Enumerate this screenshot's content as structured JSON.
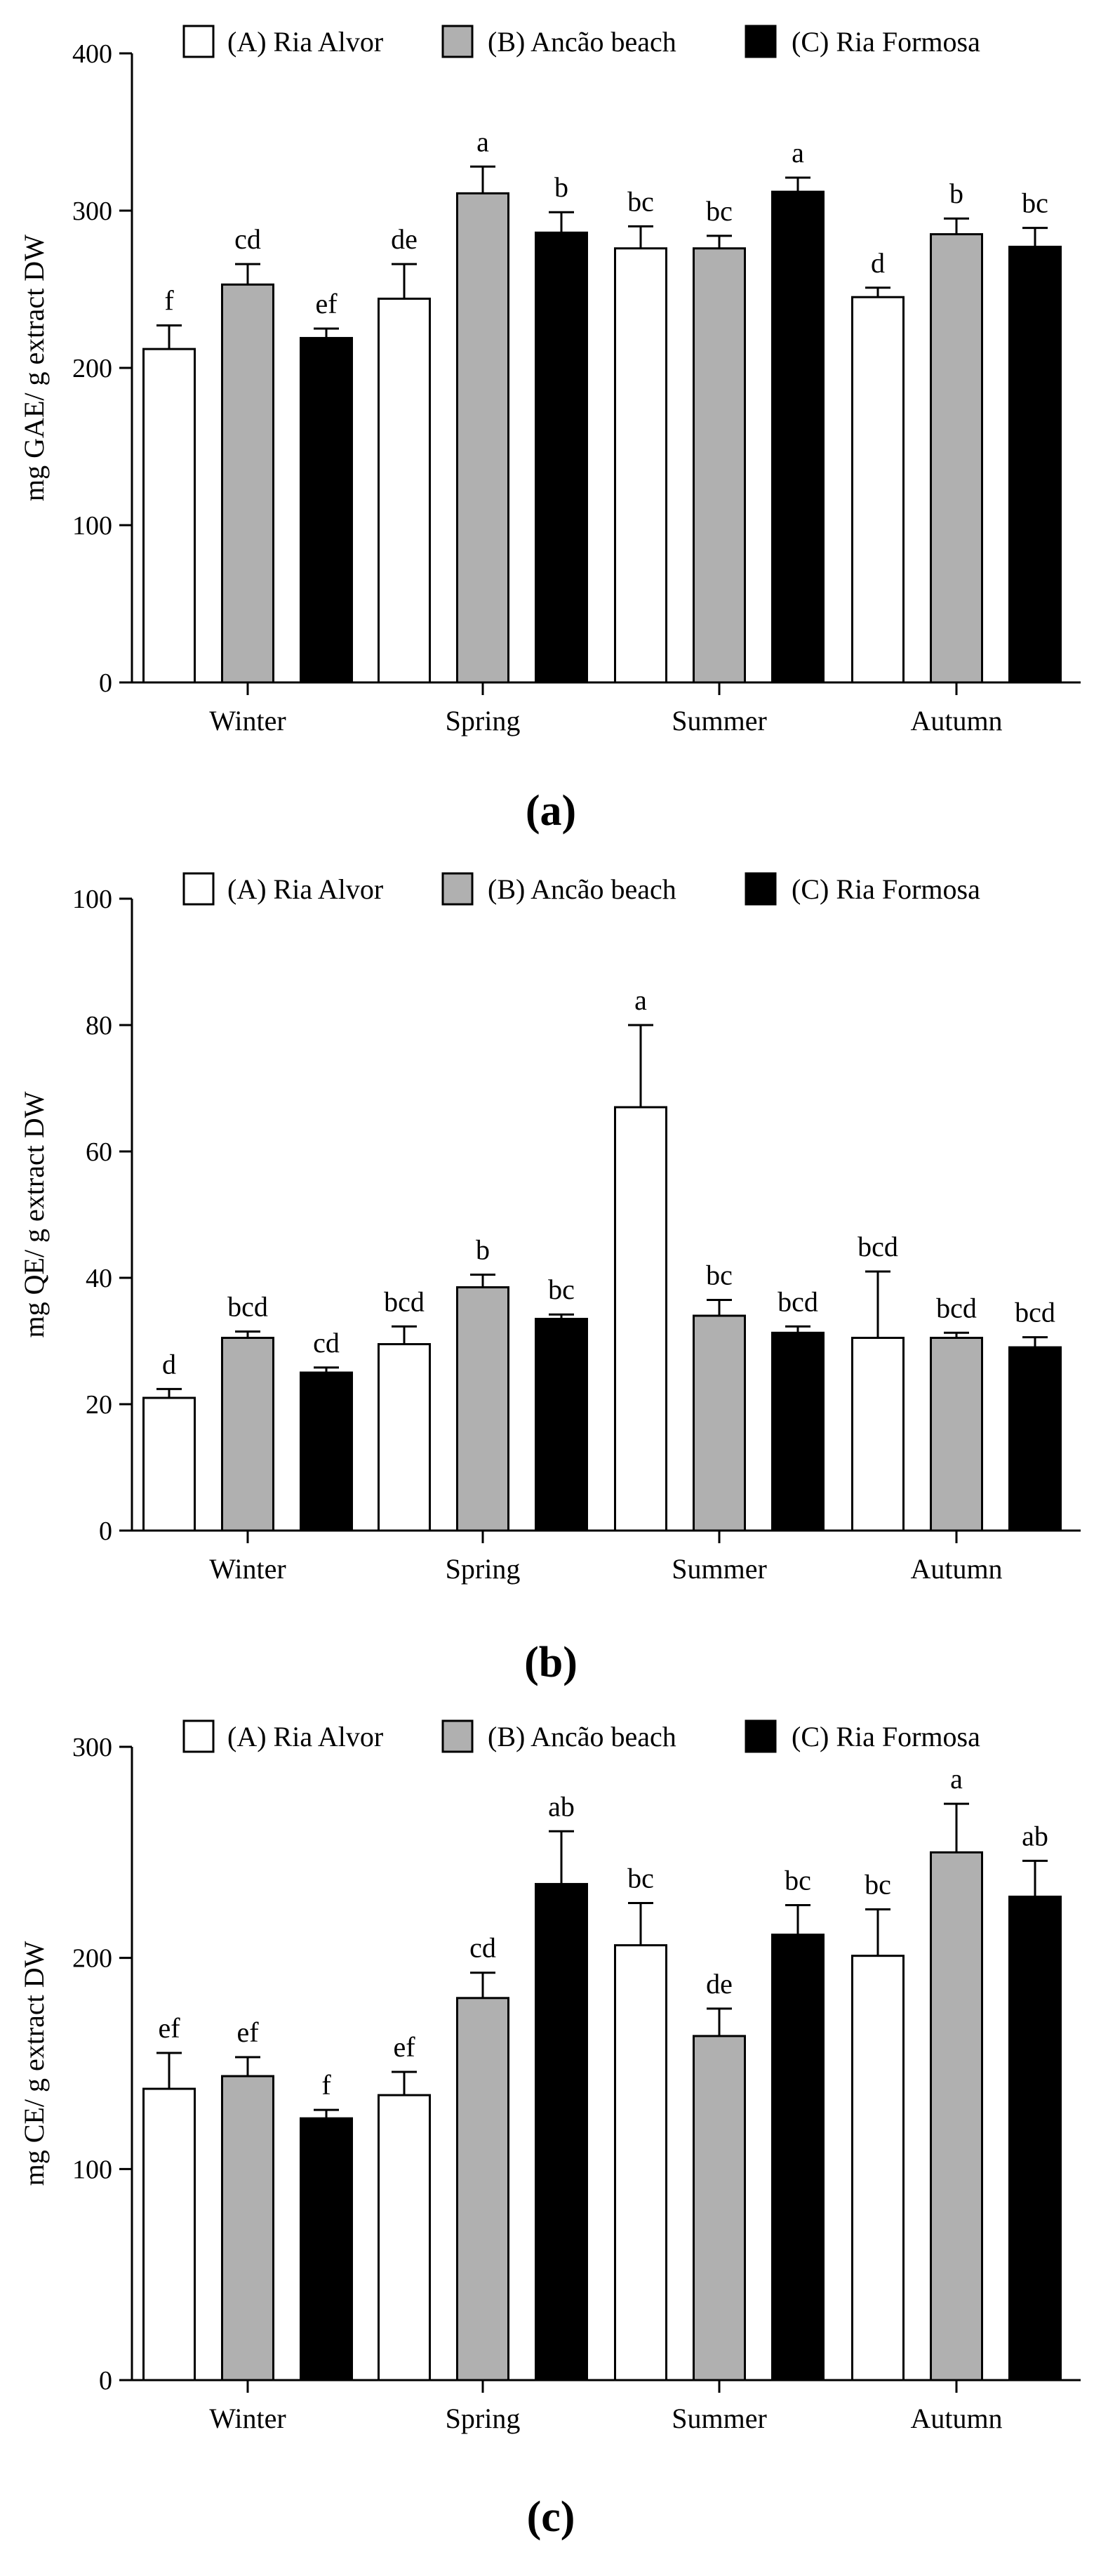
{
  "legend": [
    {
      "key": "A",
      "label": "(A) Ria Alvor",
      "color": "#ffffff"
    },
    {
      "key": "B",
      "label": "(B) Ancão beach",
      "color": "#b0b0b0"
    },
    {
      "key": "C",
      "label": "(C) Ria Formosa",
      "color": "#000000"
    }
  ],
  "chart_data": [
    {
      "panel_label": "(a)",
      "type": "bar",
      "ylabel": "mg GAE/ g extract DW",
      "ylim": [
        0,
        400
      ],
      "yticks": [
        0,
        100,
        200,
        300,
        400
      ],
      "grid": false,
      "legend_position": "top",
      "categories": [
        "Winter",
        "Spring",
        "Summer",
        "Autumn"
      ],
      "series": [
        {
          "name": "(A) Ria Alvor",
          "color": "#ffffff",
          "values": [
            212,
            244,
            276,
            245
          ],
          "errors": [
            15,
            22,
            14,
            6
          ],
          "letters": [
            "f",
            "de",
            "bc",
            "d"
          ]
        },
        {
          "name": "(B) Ancão beach",
          "color": "#b0b0b0",
          "values": [
            253,
            311,
            276,
            285
          ],
          "errors": [
            13,
            17,
            8,
            10
          ],
          "letters": [
            "cd",
            "a",
            "bc",
            "b"
          ]
        },
        {
          "name": "(C) Ria Formosa",
          "color": "#000000",
          "values": [
            219,
            286,
            312,
            277
          ],
          "errors": [
            6,
            13,
            9,
            12
          ],
          "letters": [
            "ef",
            "b",
            "a",
            "bc"
          ]
        }
      ]
    },
    {
      "panel_label": "(b)",
      "type": "bar",
      "ylabel": "mg QE/ g extract DW",
      "ylim": [
        0,
        100
      ],
      "yticks": [
        0,
        20,
        40,
        60,
        80,
        100
      ],
      "grid": false,
      "legend_position": "top",
      "categories": [
        "Winter",
        "Spring",
        "Summer",
        "Autumn"
      ],
      "series": [
        {
          "name": "(A) Ria Alvor",
          "color": "#ffffff",
          "values": [
            21,
            29.5,
            67,
            30.5
          ],
          "errors": [
            1.4,
            2.8,
            13,
            10.5
          ],
          "letters": [
            "d",
            "bcd",
            "a",
            "bcd"
          ]
        },
        {
          "name": "(B) Ancão beach",
          "color": "#b0b0b0",
          "values": [
            30.5,
            38.5,
            34,
            30.5
          ],
          "errors": [
            1.0,
            2.0,
            2.5,
            0.8
          ],
          "letters": [
            "bcd",
            "b",
            "bc",
            "bcd"
          ]
        },
        {
          "name": "(C) Ria Formosa",
          "color": "#000000",
          "values": [
            25,
            33.5,
            31.3,
            29
          ],
          "errors": [
            0.8,
            0.7,
            1.0,
            1.6
          ],
          "letters": [
            "cd",
            "bc",
            "bcd",
            "bcd"
          ]
        }
      ]
    },
    {
      "panel_label": "(c)",
      "type": "bar",
      "ylabel": "mg CE/ g extract DW",
      "ylim": [
        0,
        300
      ],
      "yticks": [
        0,
        100,
        200,
        300
      ],
      "grid": false,
      "legend_position": "top",
      "categories": [
        "Winter",
        "Spring",
        "Summer",
        "Autumn"
      ],
      "series": [
        {
          "name": "(A) Ria Alvor",
          "color": "#ffffff",
          "values": [
            138,
            135,
            206,
            201
          ],
          "errors": [
            17,
            11,
            20,
            22
          ],
          "letters": [
            "ef",
            "ef",
            "bc",
            "bc"
          ]
        },
        {
          "name": "(B) Ancão beach",
          "color": "#b0b0b0",
          "values": [
            144,
            181,
            163,
            250
          ],
          "errors": [
            9,
            12,
            13,
            23
          ],
          "letters": [
            "ef",
            "cd",
            "de",
            "a"
          ]
        },
        {
          "name": "(C) Ria Formosa",
          "color": "#000000",
          "values": [
            124,
            235,
            211,
            229
          ],
          "errors": [
            4,
            25,
            14,
            17
          ],
          "letters": [
            "f",
            "ab",
            "bc",
            "ab"
          ]
        }
      ]
    }
  ]
}
